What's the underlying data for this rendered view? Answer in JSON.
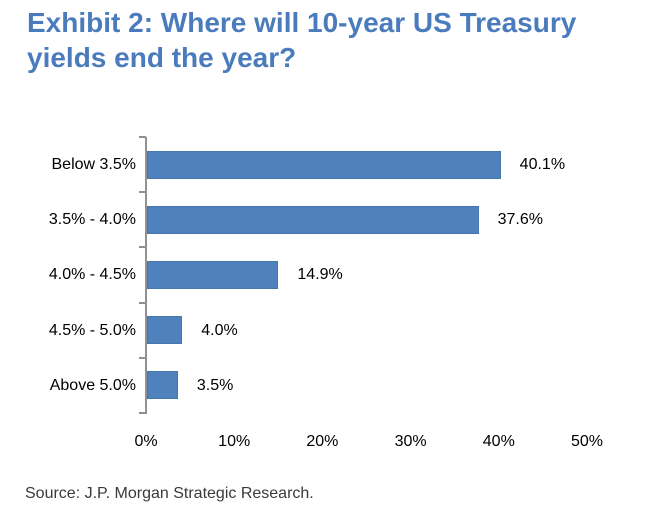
{
  "header": {
    "title": "Exhibit 2: Where will 10-year US Treasury yields end the year?"
  },
  "footer": {
    "source": "Source: J.P. Morgan Strategic Research."
  },
  "colors": {
    "title_text": "#4A7CBD",
    "bar_fill": "#4F81BD",
    "bar_border": "#4576AC",
    "axis_line": "#919191",
    "label_text": "#000000",
    "source_text": "#3A3A3A"
  },
  "chart_data": {
    "type": "bar",
    "orientation": "horizontal",
    "title": "Exhibit 2: Where will 10-year US Treasury yields end the year?",
    "categories": [
      "Below 3.5%",
      "3.5% - 4.0%",
      "4.0% - 4.5%",
      "4.5% - 5.0%",
      "Above 5.0%"
    ],
    "values": [
      40.1,
      37.6,
      14.9,
      4.0,
      3.5
    ],
    "value_labels": [
      "40.1%",
      "37.6%",
      "14.9%",
      "4.0%",
      "3.5%"
    ],
    "xlabel": "",
    "ylabel": "",
    "xlim": [
      0,
      50
    ],
    "x_ticks": [
      0,
      10,
      20,
      30,
      40,
      50
    ],
    "x_tick_labels": [
      "0%",
      "10%",
      "20%",
      "30%",
      "40%",
      "50%"
    ],
    "grid": false,
    "legend": "none",
    "data_label_position": "right-of-bar",
    "source": "Source: J.P. Morgan Strategic Research."
  }
}
